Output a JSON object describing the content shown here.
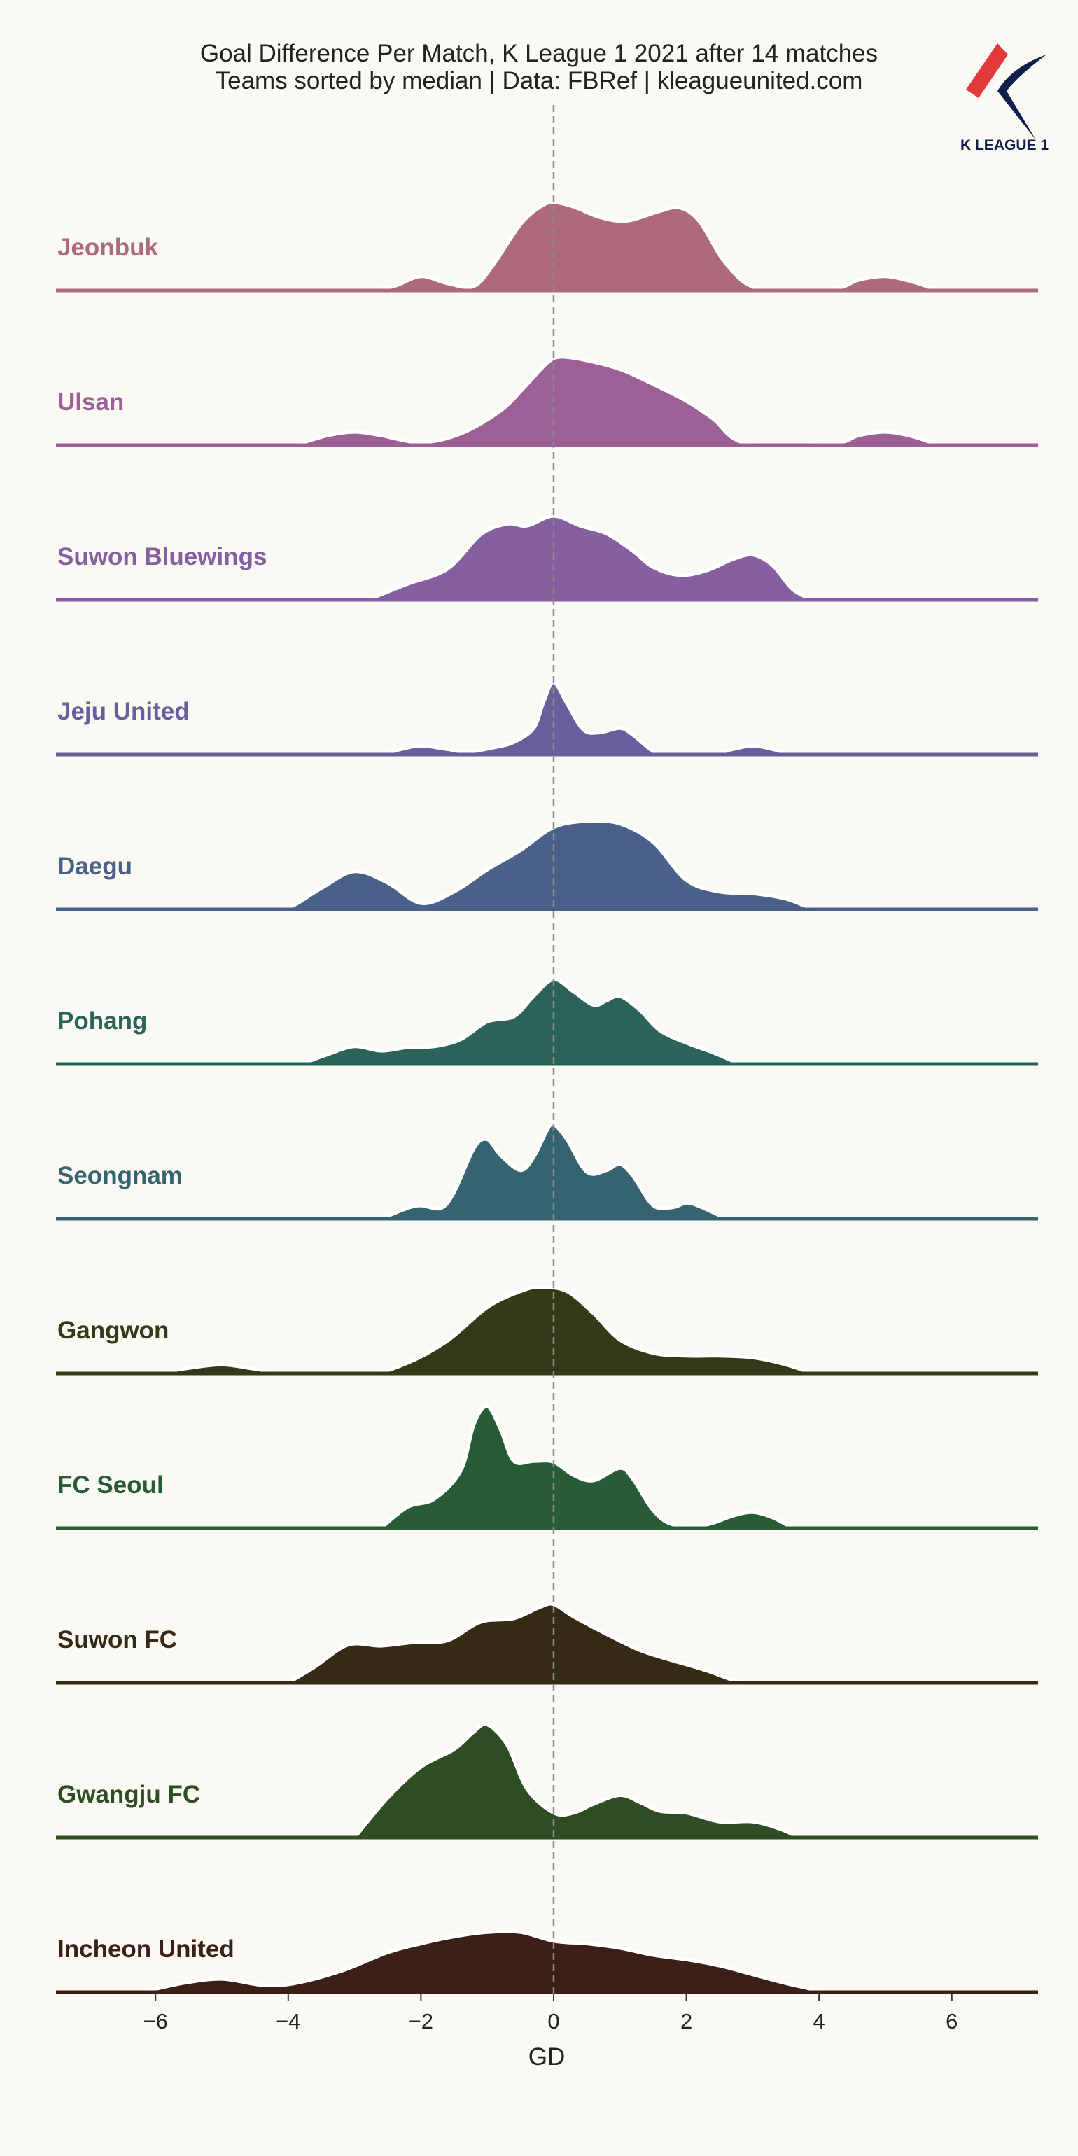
{
  "chart_data": {
    "type": "ridgeline",
    "title": "Goal Difference Per Match, K League 1 2021 after 14 matches",
    "subtitle": "Teams sorted by median | Data: FBRef | kleagueunited.com",
    "xlabel": "GD",
    "xlim": [
      -7.5,
      7.3
    ],
    "xticks": [
      -6,
      -4,
      -2,
      0,
      2,
      4,
      6
    ],
    "xtick_labels": [
      "−6",
      "−4",
      "−2",
      "0",
      "2",
      "4",
      "6"
    ],
    "reference_line_x": 0,
    "logo_text": "K LEAGUE 1",
    "series": [
      {
        "name": "Jeonbuk",
        "color": "#ad6a7c",
        "density": [
          [
            -2.8,
            0
          ],
          [
            -2.4,
            0.05
          ],
          [
            -2,
            0.16
          ],
          [
            -1.6,
            0.08
          ],
          [
            -1.2,
            0.05
          ],
          [
            -0.9,
            0.3
          ],
          [
            -0.5,
            0.75
          ],
          [
            -0.2,
            0.95
          ],
          [
            0,
            1.0
          ],
          [
            0.3,
            0.95
          ],
          [
            0.7,
            0.83
          ],
          [
            1.1,
            0.79
          ],
          [
            1.6,
            0.9
          ],
          [
            1.9,
            0.94
          ],
          [
            2.2,
            0.78
          ],
          [
            2.6,
            0.3
          ],
          [
            3.1,
            0.02
          ],
          [
            4.2,
            0.02
          ],
          [
            4.6,
            0.12
          ],
          [
            5,
            0.16
          ],
          [
            5.4,
            0.1
          ],
          [
            5.8,
            0
          ]
        ]
      },
      {
        "name": "Ulsan",
        "color": "#9c6096",
        "density": [
          [
            -3.9,
            0
          ],
          [
            -3.4,
            0.11
          ],
          [
            -3,
            0.15
          ],
          [
            -2.6,
            0.11
          ],
          [
            -2,
            0.03
          ],
          [
            -1.4,
            0.13
          ],
          [
            -0.8,
            0.39
          ],
          [
            -0.4,
            0.69
          ],
          [
            -0.1,
            0.93
          ],
          [
            0.1,
            1.0
          ],
          [
            0.5,
            0.96
          ],
          [
            1,
            0.86
          ],
          [
            1.5,
            0.69
          ],
          [
            2,
            0.5
          ],
          [
            2.4,
            0.3
          ],
          [
            2.9,
            0.02
          ],
          [
            4.2,
            0.02
          ],
          [
            4.6,
            0.11
          ],
          [
            5,
            0.15
          ],
          [
            5.4,
            0.1
          ],
          [
            5.8,
            0
          ]
        ]
      },
      {
        "name": "Suwon Bluewings",
        "color": "#855f9f",
        "density": [
          [
            -2.8,
            0
          ],
          [
            -2.2,
            0.18
          ],
          [
            -1.6,
            0.35
          ],
          [
            -1.1,
            0.74
          ],
          [
            -0.7,
            0.86
          ],
          [
            -0.4,
            0.84
          ],
          [
            0,
            0.95
          ],
          [
            0.4,
            0.84
          ],
          [
            0.8,
            0.75
          ],
          [
            1.2,
            0.55
          ],
          [
            1.5,
            0.37
          ],
          [
            1.9,
            0.28
          ],
          [
            2.3,
            0.33
          ],
          [
            2.7,
            0.46
          ],
          [
            3,
            0.51
          ],
          [
            3.3,
            0.39
          ],
          [
            3.6,
            0.12
          ],
          [
            3.9,
            0
          ]
        ]
      },
      {
        "name": "Jeju United",
        "color": "#6a5e9c",
        "density": [
          [
            -2.6,
            0
          ],
          [
            -2.3,
            0.06
          ],
          [
            -2,
            0.1
          ],
          [
            -1.6,
            0.06
          ],
          [
            -1.3,
            0.03
          ],
          [
            -0.9,
            0.08
          ],
          [
            -0.6,
            0.14
          ],
          [
            -0.3,
            0.3
          ],
          [
            -0.15,
            0.6
          ],
          [
            0,
            0.82
          ],
          [
            0.2,
            0.58
          ],
          [
            0.45,
            0.28
          ],
          [
            0.7,
            0.25
          ],
          [
            1,
            0.3
          ],
          [
            1.2,
            0.22
          ],
          [
            1.5,
            0.04
          ],
          [
            1.8,
            0
          ],
          [
            2.4,
            0.01
          ],
          [
            2.7,
            0.06
          ],
          [
            3,
            0.1
          ],
          [
            3.3,
            0.06
          ],
          [
            3.6,
            0
          ]
        ]
      },
      {
        "name": "Daegu",
        "color": "#4b6088",
        "density": [
          [
            -4.5,
            0
          ],
          [
            -4,
            0.02
          ],
          [
            -3.5,
            0.24
          ],
          [
            -3,
            0.43
          ],
          [
            -2.5,
            0.3
          ],
          [
            -2,
            0.07
          ],
          [
            -1.5,
            0.2
          ],
          [
            -1,
            0.45
          ],
          [
            -0.5,
            0.67
          ],
          [
            0,
            0.93
          ],
          [
            0.5,
            1.0
          ],
          [
            1,
            0.97
          ],
          [
            1.5,
            0.76
          ],
          [
            2,
            0.33
          ],
          [
            2.5,
            0.2
          ],
          [
            3,
            0.18
          ],
          [
            3.5,
            0.12
          ],
          [
            3.9,
            0.02
          ],
          [
            4.5,
            0.01
          ],
          [
            5,
            0
          ]
        ]
      },
      {
        "name": "Pohang",
        "color": "#2b6358",
        "density": [
          [
            -3.8,
            0
          ],
          [
            -3.4,
            0.11
          ],
          [
            -3,
            0.2
          ],
          [
            -2.6,
            0.15
          ],
          [
            -2.2,
            0.19
          ],
          [
            -1.8,
            0.2
          ],
          [
            -1.4,
            0.28
          ],
          [
            -1,
            0.48
          ],
          [
            -0.6,
            0.54
          ],
          [
            -0.3,
            0.77
          ],
          [
            0,
            0.96
          ],
          [
            0.3,
            0.82
          ],
          [
            0.6,
            0.67
          ],
          [
            0.8,
            0.72
          ],
          [
            1,
            0.77
          ],
          [
            1.3,
            0.61
          ],
          [
            1.6,
            0.38
          ],
          [
            2,
            0.24
          ],
          [
            2.4,
            0.13
          ],
          [
            2.8,
            0
          ]
        ]
      },
      {
        "name": "Seongnam",
        "color": "#35636f",
        "density": [
          [
            -2.6,
            0
          ],
          [
            -2.2,
            0.12
          ],
          [
            -2,
            0.15
          ],
          [
            -1.7,
            0.12
          ],
          [
            -1.5,
            0.3
          ],
          [
            -1.2,
            0.8
          ],
          [
            -1,
            0.9
          ],
          [
            -0.8,
            0.72
          ],
          [
            -0.5,
            0.55
          ],
          [
            -0.3,
            0.7
          ],
          [
            -0.1,
            1.0
          ],
          [
            0,
            1.07
          ],
          [
            0.2,
            0.9
          ],
          [
            0.5,
            0.53
          ],
          [
            0.8,
            0.55
          ],
          [
            1,
            0.62
          ],
          [
            1.2,
            0.48
          ],
          [
            1.5,
            0.15
          ],
          [
            1.8,
            0.13
          ],
          [
            2,
            0.18
          ],
          [
            2.2,
            0.14
          ],
          [
            2.6,
            0
          ]
        ]
      },
      {
        "name": "Gangwon",
        "color": "#343918",
        "density": [
          [
            -6,
            0
          ],
          [
            -5.5,
            0.06
          ],
          [
            -5,
            0.1
          ],
          [
            -4.5,
            0.05
          ],
          [
            -4,
            0
          ],
          [
            -2.8,
            0
          ],
          [
            -2.2,
            0.12
          ],
          [
            -1.6,
            0.37
          ],
          [
            -1,
            0.75
          ],
          [
            -0.5,
            0.93
          ],
          [
            -0.2,
            0.98
          ],
          [
            0.2,
            0.93
          ],
          [
            0.6,
            0.68
          ],
          [
            1,
            0.38
          ],
          [
            1.5,
            0.23
          ],
          [
            2,
            0.2
          ],
          [
            2.5,
            0.2
          ],
          [
            3,
            0.18
          ],
          [
            3.5,
            0.1
          ],
          [
            3.9,
            0
          ]
        ]
      },
      {
        "name": "FC Seoul",
        "color": "#285c37",
        "density": [
          [
            -2.6,
            0
          ],
          [
            -2.2,
            0.24
          ],
          [
            -1.8,
            0.33
          ],
          [
            -1.4,
            0.65
          ],
          [
            -1.2,
            1.18
          ],
          [
            -1,
            1.38
          ],
          [
            -0.8,
            1.12
          ],
          [
            -0.6,
            0.76
          ],
          [
            -0.3,
            0.76
          ],
          [
            0,
            0.75
          ],
          [
            0.3,
            0.6
          ],
          [
            0.6,
            0.54
          ],
          [
            1,
            0.68
          ],
          [
            1.2,
            0.55
          ],
          [
            1.5,
            0.2
          ],
          [
            1.8,
            0.04
          ],
          [
            2.3,
            0.04
          ],
          [
            2.7,
            0.14
          ],
          [
            3,
            0.18
          ],
          [
            3.3,
            0.12
          ],
          [
            3.6,
            0
          ]
        ]
      },
      {
        "name": "Suwon FC",
        "color": "#352b14",
        "density": [
          [
            -4,
            0
          ],
          [
            -3.6,
            0.18
          ],
          [
            -3.1,
            0.43
          ],
          [
            -2.6,
            0.42
          ],
          [
            -2.1,
            0.46
          ],
          [
            -1.6,
            0.48
          ],
          [
            -1.1,
            0.69
          ],
          [
            -0.6,
            0.73
          ],
          [
            -0.2,
            0.86
          ],
          [
            0,
            0.89
          ],
          [
            0.3,
            0.75
          ],
          [
            0.8,
            0.55
          ],
          [
            1.3,
            0.37
          ],
          [
            1.8,
            0.25
          ],
          [
            2.3,
            0.14
          ],
          [
            2.8,
            0
          ]
        ]
      },
      {
        "name": "Gwangju FC",
        "color": "#2f4d22",
        "density": [
          [
            -3,
            0
          ],
          [
            -2.5,
            0.45
          ],
          [
            -2,
            0.8
          ],
          [
            -1.5,
            1.0
          ],
          [
            -1.2,
            1.2
          ],
          [
            -1,
            1.28
          ],
          [
            -0.7,
            1.05
          ],
          [
            -0.4,
            0.55
          ],
          [
            0,
            0.28
          ],
          [
            0.3,
            0.28
          ],
          [
            0.6,
            0.38
          ],
          [
            1,
            0.48
          ],
          [
            1.3,
            0.4
          ],
          [
            1.6,
            0.3
          ],
          [
            2,
            0.28
          ],
          [
            2.5,
            0.18
          ],
          [
            3,
            0.18
          ],
          [
            3.4,
            0.1
          ],
          [
            3.7,
            0
          ]
        ]
      },
      {
        "name": "Incheon United",
        "color": "#3a2016",
        "density": [
          [
            -6.2,
            0
          ],
          [
            -5.6,
            0.1
          ],
          [
            -5,
            0.15
          ],
          [
            -4.4,
            0.08
          ],
          [
            -3.9,
            0.1
          ],
          [
            -3.2,
            0.24
          ],
          [
            -2.5,
            0.45
          ],
          [
            -2,
            0.55
          ],
          [
            -1.5,
            0.63
          ],
          [
            -1,
            0.68
          ],
          [
            -0.5,
            0.68
          ],
          [
            0,
            0.58
          ],
          [
            0.5,
            0.55
          ],
          [
            1,
            0.5
          ],
          [
            1.5,
            0.42
          ],
          [
            2,
            0.37
          ],
          [
            2.5,
            0.3
          ],
          [
            3,
            0.2
          ],
          [
            3.5,
            0.1
          ],
          [
            4.1,
            0
          ]
        ]
      }
    ]
  }
}
